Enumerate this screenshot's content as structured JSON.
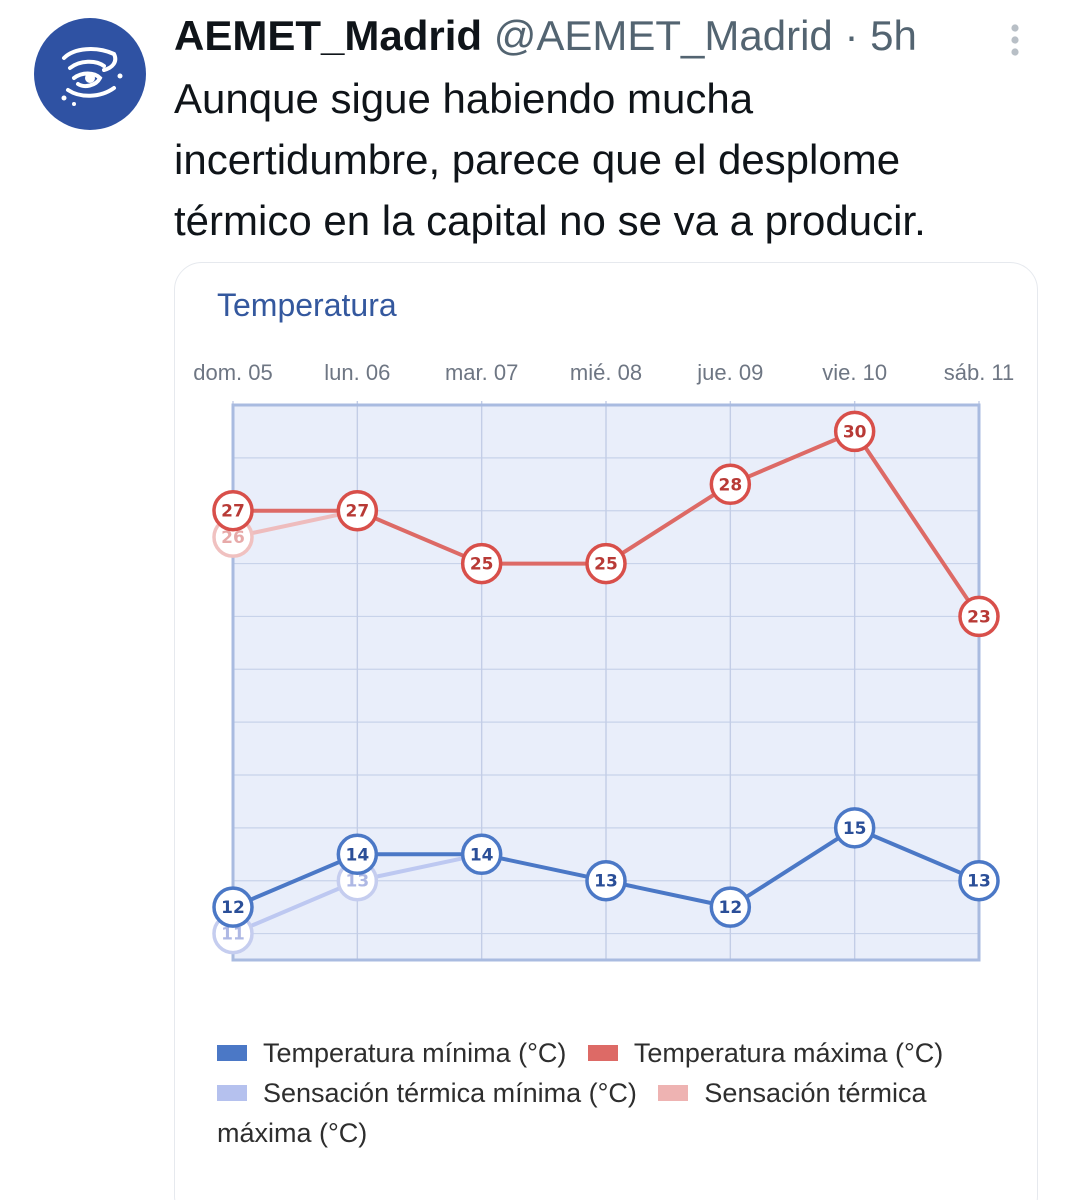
{
  "tweet": {
    "display_name": "AEMET_Madrid",
    "handle": "@AEMET_Madrid",
    "separator": "·",
    "time": "5h",
    "avatar_icon": "aemet-logo-icon",
    "more_icon": "more-vertical-icon",
    "text_lines": [
      "Aunque sigue habiendo mucha",
      "incertidumbre, parece que el desplome",
      "térmico en la capital no se va a producir."
    ]
  },
  "chart_data": {
    "type": "line",
    "title": "Temperatura",
    "categories": [
      "dom. 05",
      "lun. 06",
      "mar. 07",
      "mié. 08",
      "jue. 09",
      "vie. 10",
      "sáb. 11"
    ],
    "ylim": [
      10,
      31
    ],
    "grid": true,
    "legend_position": "bottom",
    "series": [
      {
        "name": "Temperatura mínima (°C)",
        "color": "#4b78c6",
        "values": [
          12,
          14,
          14,
          13,
          12,
          15,
          13
        ]
      },
      {
        "name": "Temperatura máxima (°C)",
        "color": "#dd6a66",
        "values": [
          27,
          27,
          25,
          25,
          28,
          30,
          23
        ]
      },
      {
        "name": "Sensación térmica mínima (°C)",
        "color": "#b5c1ee",
        "values": [
          11,
          13,
          14,
          null,
          null,
          null,
          null
        ]
      },
      {
        "name": "Sensación térmica máxima (°C)",
        "color": "#eeb3b2",
        "values": [
          26,
          27,
          null,
          null,
          null,
          null,
          null
        ]
      }
    ],
    "legend_lines": [
      [
        "Temperatura mínima (°C)",
        "Temperatura máxima (°C)"
      ],
      [
        "Sensación térmica mínima (°C)",
        "Sensación térmica"
      ],
      [
        "máxima (°C)"
      ]
    ]
  }
}
